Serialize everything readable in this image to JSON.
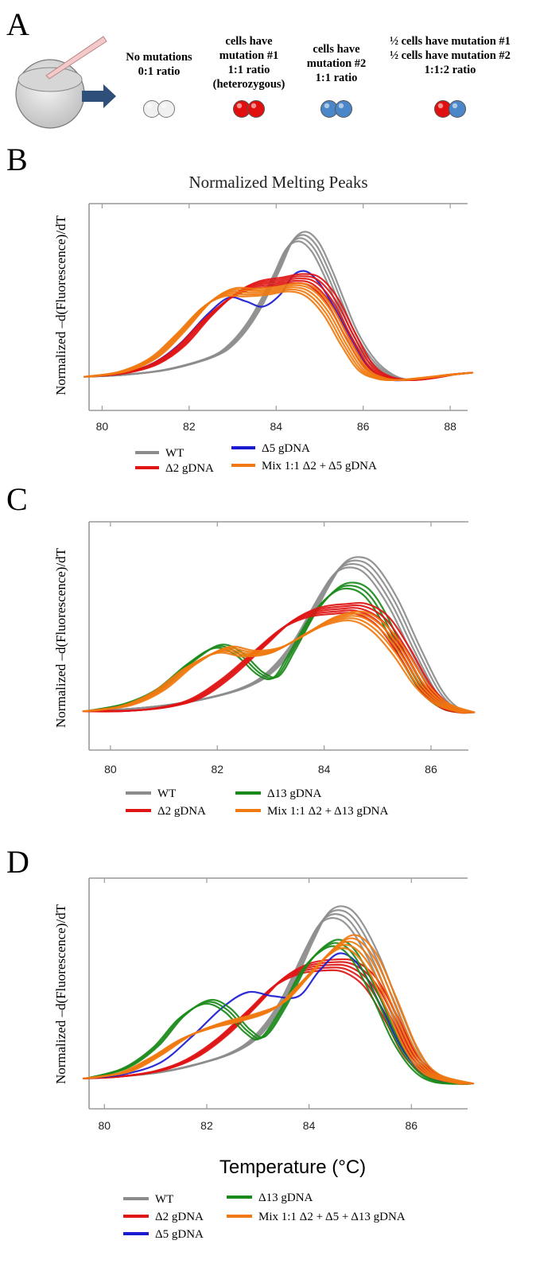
{
  "panel_a": {
    "letter": "A",
    "groups": [
      {
        "lines": [
          "No mutations",
          "0:1 ratio"
        ],
        "dots": [
          "white",
          "white"
        ]
      },
      {
        "lines": [
          "cells have",
          "mutation #1",
          "1:1 ratio",
          "(heterozygous)"
        ],
        "dots": [
          "red",
          "red"
        ]
      },
      {
        "lines": [
          "cells have",
          "mutation #2",
          "1:1 ratio"
        ],
        "dots": [
          "blue",
          "blue"
        ]
      },
      {
        "lines": [
          "½  cells have mutation #1",
          "½ cells have mutation #2",
          "1:1:2 ratio"
        ],
        "dots": [
          "red",
          "blue"
        ]
      }
    ],
    "dot_colors": {
      "white": "#f0f0f0",
      "red": "#e01010",
      "blue": "#4a86c8"
    }
  },
  "chart_data": [
    {
      "type": "line",
      "panel": "B",
      "title": "Normalized  Melting  Peaks",
      "ylabel": "Normalized  –d(Fluorescence)/dT",
      "xlabel": "",
      "xlim": [
        79.7,
        88.4
      ],
      "ylim": [
        0,
        1
      ],
      "xticks": [
        80,
        82,
        84,
        86,
        88
      ],
      "series": [
        {
          "name": "WT",
          "color": "#8c8c8c",
          "replicates": 4,
          "x": [
            79.7,
            80.5,
            81.5,
            82.5,
            83.0,
            83.5,
            84.0,
            84.3,
            84.6,
            84.9,
            85.2,
            85.5,
            85.8,
            86.2,
            86.6,
            87.0,
            87.5,
            88.0,
            88.4
          ],
          "y": [
            0.03,
            0.04,
            0.07,
            0.14,
            0.22,
            0.38,
            0.62,
            0.78,
            0.83,
            0.77,
            0.62,
            0.44,
            0.27,
            0.12,
            0.04,
            0.01,
            0.02,
            0.04,
            0.05
          ]
        },
        {
          "name": "Δ5 gDNA",
          "color": "#1a1ad0",
          "replicates": 1,
          "x": [
            79.7,
            80.5,
            81.2,
            81.8,
            82.4,
            82.9,
            83.3,
            83.7,
            84.1,
            84.4,
            84.7,
            85.0,
            85.3,
            85.7,
            86.1,
            86.5,
            87.0,
            88.0,
            88.4
          ],
          "y": [
            0.03,
            0.05,
            0.11,
            0.22,
            0.38,
            0.48,
            0.46,
            0.43,
            0.5,
            0.61,
            0.63,
            0.56,
            0.44,
            0.26,
            0.09,
            0.02,
            0.01,
            0.04,
            0.05
          ]
        },
        {
          "name": "Δ2 gDNA",
          "color": "#e01515",
          "replicates": 5,
          "x": [
            79.7,
            80.5,
            81.2,
            81.8,
            82.4,
            83.0,
            83.5,
            84.0,
            84.5,
            84.9,
            85.3,
            85.7,
            86.1,
            86.5,
            87.0,
            87.5,
            88.0,
            88.4
          ],
          "y": [
            0.03,
            0.05,
            0.1,
            0.2,
            0.36,
            0.49,
            0.55,
            0.57,
            0.59,
            0.57,
            0.46,
            0.27,
            0.1,
            0.03,
            0.01,
            0.02,
            0.04,
            0.05
          ]
        },
        {
          "name": "Mix 1:1 Δ2 + Δ5 gDNA",
          "color": "#f07a10",
          "replicates": 5,
          "x": [
            79.7,
            80.5,
            81.2,
            81.8,
            82.4,
            82.9,
            83.4,
            83.9,
            84.4,
            84.8,
            85.2,
            85.6,
            86.0,
            86.4,
            86.8,
            87.3,
            88.0,
            88.4
          ],
          "y": [
            0.03,
            0.06,
            0.14,
            0.28,
            0.44,
            0.51,
            0.51,
            0.52,
            0.54,
            0.51,
            0.4,
            0.22,
            0.07,
            0.02,
            0.01,
            0.02,
            0.04,
            0.05
          ]
        }
      ],
      "legend": [
        "WT",
        "Δ5 gDNA",
        "Δ2 gDNA",
        "Mix 1:1 Δ2 + Δ5 gDNA"
      ]
    },
    {
      "type": "line",
      "panel": "C",
      "title": "",
      "ylabel": "Normalized  –d(Fluorescence)/dT",
      "xlabel": "",
      "xlim": [
        79.6,
        86.7
      ],
      "ylim": [
        0,
        1
      ],
      "xticks": [
        80,
        82,
        84,
        86
      ],
      "series": [
        {
          "name": "WT",
          "color": "#8c8c8c",
          "replicates": 4,
          "x": [
            79.6,
            80.3,
            81.0,
            81.8,
            82.5,
            83.0,
            83.5,
            84.0,
            84.3,
            84.6,
            84.9,
            85.3,
            85.7,
            86.1,
            86.4,
            86.7
          ],
          "y": [
            0.05,
            0.06,
            0.08,
            0.12,
            0.18,
            0.27,
            0.45,
            0.72,
            0.85,
            0.88,
            0.83,
            0.65,
            0.4,
            0.17,
            0.07,
            0.04
          ]
        },
        {
          "name": "Δ13 gDNA",
          "color": "#1a8a1a",
          "replicates": 3,
          "x": [
            79.6,
            80.3,
            80.9,
            81.5,
            82.0,
            82.4,
            82.8,
            83.1,
            83.4,
            83.8,
            84.2,
            84.5,
            84.8,
            85.1,
            85.5,
            85.9,
            86.3,
            86.7
          ],
          "y": [
            0.05,
            0.09,
            0.17,
            0.32,
            0.41,
            0.37,
            0.26,
            0.24,
            0.38,
            0.59,
            0.72,
            0.75,
            0.71,
            0.58,
            0.34,
            0.15,
            0.06,
            0.04
          ]
        },
        {
          "name": "Δ2 gDNA",
          "color": "#e01515",
          "replicates": 5,
          "x": [
            79.6,
            80.3,
            81.0,
            81.6,
            82.2,
            82.8,
            83.3,
            83.8,
            84.3,
            84.7,
            85.1,
            85.5,
            85.9,
            86.3,
            86.7
          ],
          "y": [
            0.05,
            0.05,
            0.07,
            0.12,
            0.24,
            0.4,
            0.53,
            0.6,
            0.62,
            0.62,
            0.55,
            0.38,
            0.18,
            0.07,
            0.04
          ]
        },
        {
          "name": "Mix 1:1 Δ2 + Δ13 gDNA",
          "color": "#f07a10",
          "replicates": 5,
          "x": [
            79.6,
            80.3,
            80.9,
            81.5,
            82.1,
            82.6,
            83.1,
            83.6,
            84.1,
            84.6,
            85.0,
            85.4,
            85.8,
            86.2,
            86.7
          ],
          "y": [
            0.05,
            0.08,
            0.16,
            0.3,
            0.39,
            0.37,
            0.39,
            0.47,
            0.55,
            0.58,
            0.52,
            0.38,
            0.2,
            0.09,
            0.04
          ]
        }
      ],
      "legend": [
        "WT",
        "Δ13 gDNA",
        "Δ2 gDNA",
        "Mix 1:1 Δ2 + Δ13 gDNA"
      ]
    },
    {
      "type": "line",
      "panel": "D",
      "title": "",
      "ylabel": "Normalized  –d(Fluorescence)/dT",
      "xlabel": "Temperature (°C)",
      "xlim": [
        79.7,
        87.1
      ],
      "ylim": [
        0,
        1
      ],
      "xticks": [
        80,
        82,
        84,
        86
      ],
      "series": [
        {
          "name": "WT",
          "color": "#8c8c8c",
          "replicates": 4,
          "x": [
            79.7,
            80.4,
            81.1,
            81.8,
            82.5,
            83.0,
            83.5,
            84.0,
            84.3,
            84.6,
            84.9,
            85.3,
            85.7,
            86.1,
            86.5,
            87.1
          ],
          "y": [
            0.06,
            0.07,
            0.09,
            0.13,
            0.19,
            0.28,
            0.46,
            0.74,
            0.88,
            0.91,
            0.85,
            0.66,
            0.4,
            0.17,
            0.07,
            0.03
          ]
        },
        {
          "name": "Δ2 gDNA",
          "color": "#e01515",
          "replicates": 5,
          "x": [
            79.7,
            80.4,
            81.1,
            81.7,
            82.3,
            82.9,
            83.4,
            83.9,
            84.4,
            84.8,
            85.2,
            85.6,
            86.0,
            86.5,
            87.1
          ],
          "y": [
            0.06,
            0.07,
            0.1,
            0.16,
            0.27,
            0.42,
            0.55,
            0.62,
            0.64,
            0.63,
            0.55,
            0.37,
            0.17,
            0.06,
            0.03
          ]
        },
        {
          "name": "Δ5 gDNA",
          "color": "#1a1ad0",
          "replicates": 1,
          "x": [
            79.7,
            80.4,
            81.1,
            81.7,
            82.3,
            82.8,
            83.3,
            83.8,
            84.2,
            84.6,
            85.0,
            85.4,
            85.8,
            86.2,
            86.6,
            87.1
          ],
          "y": [
            0.06,
            0.08,
            0.14,
            0.27,
            0.42,
            0.5,
            0.48,
            0.48,
            0.61,
            0.7,
            0.63,
            0.43,
            0.22,
            0.09,
            0.04,
            0.03
          ]
        },
        {
          "name": "Δ13 gDNA",
          "color": "#1a8a1a",
          "replicates": 3,
          "x": [
            79.7,
            80.4,
            81.0,
            81.5,
            82.0,
            82.4,
            82.8,
            83.1,
            83.5,
            83.9,
            84.3,
            84.6,
            84.9,
            85.3,
            85.7,
            86.1,
            86.5,
            87.1
          ],
          "y": [
            0.06,
            0.11,
            0.22,
            0.37,
            0.45,
            0.41,
            0.3,
            0.27,
            0.42,
            0.62,
            0.73,
            0.75,
            0.68,
            0.48,
            0.25,
            0.1,
            0.04,
            0.03
          ]
        },
        {
          "name": "Mix 1:1 Δ2 + Δ5 + Δ13 gDNA",
          "color": "#f07a10",
          "replicates": 5,
          "x": [
            79.7,
            80.4,
            81.0,
            81.6,
            82.2,
            82.8,
            83.4,
            83.9,
            84.4,
            84.8,
            85.2,
            85.6,
            86.0,
            86.4,
            87.1
          ],
          "y": [
            0.06,
            0.09,
            0.17,
            0.27,
            0.33,
            0.37,
            0.43,
            0.56,
            0.7,
            0.76,
            0.67,
            0.45,
            0.21,
            0.08,
            0.03
          ]
        }
      ],
      "legend": [
        "WT",
        "Δ13 gDNA",
        "Δ2 gDNA",
        "Mix 1:1 Δ2 + Δ5 + Δ13 gDNA",
        "Δ5 gDNA"
      ]
    }
  ]
}
